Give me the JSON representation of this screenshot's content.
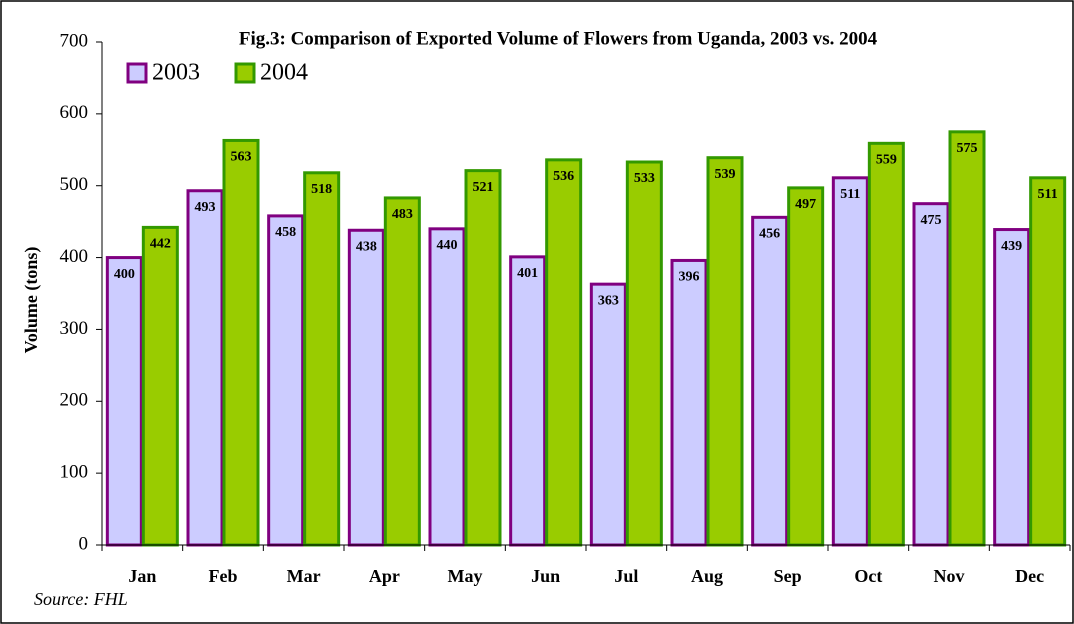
{
  "chart_data": {
    "type": "bar",
    "title": "Fig.3: Comparison of Exported Volume of Flowers from Uganda, 2003 vs. 2004",
    "y_label": "Volume (tons)",
    "source": "Source: FHL",
    "categories": [
      "Jan",
      "Feb",
      "Mar",
      "Apr",
      "May",
      "Jun",
      "Jul",
      "Aug",
      "Sep",
      "Oct",
      "Nov",
      "Dec"
    ],
    "series": [
      {
        "name": "2003",
        "color": "#ccccff",
        "edge": "#800080",
        "values": [
          400,
          493,
          458,
          438,
          440,
          401,
          363,
          396,
          456,
          511,
          475,
          439
        ]
      },
      {
        "name": "2004",
        "color": "#99cc00",
        "edge": "#339900",
        "values": [
          442,
          563,
          518,
          483,
          521,
          536,
          533,
          539,
          497,
          559,
          575,
          511
        ]
      }
    ],
    "ylim": [
      0,
      700
    ],
    "yticks": [
      0,
      100,
      200,
      300,
      400,
      500,
      600,
      700
    ],
    "grid": false,
    "legend": "top-left"
  }
}
